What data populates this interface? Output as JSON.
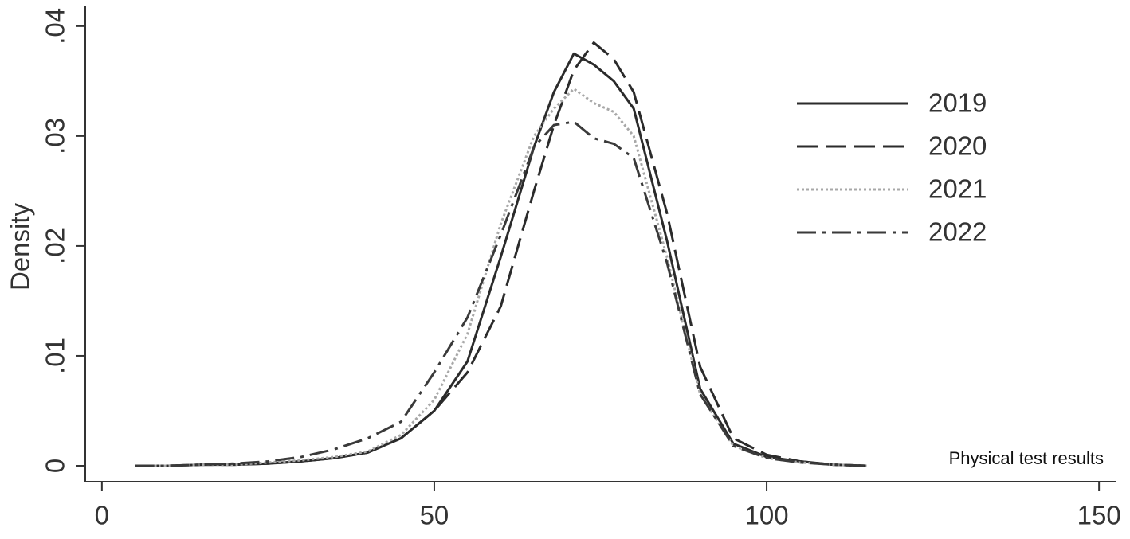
{
  "chart_data": {
    "type": "line",
    "y_label": "Density",
    "annotation": "Physical test results",
    "x": [
      5,
      10,
      15,
      20,
      25,
      30,
      35,
      40,
      45,
      50,
      55,
      60,
      65,
      68,
      71,
      74,
      77,
      80,
      85,
      90,
      95,
      100,
      105,
      110,
      115
    ],
    "series": [
      {
        "name": "2019",
        "color": "#2b2b2b",
        "style": "solid",
        "values": [
          0,
          0,
          0.0001,
          0.0001,
          0.0002,
          0.0004,
          0.0007,
          0.0012,
          0.0025,
          0.005,
          0.0095,
          0.019,
          0.029,
          0.034,
          0.0375,
          0.0365,
          0.035,
          0.0325,
          0.0205,
          0.007,
          0.002,
          0.0008,
          0.0004,
          0.0001,
          0
        ]
      },
      {
        "name": "2020",
        "color": "#2b2b2b",
        "style": "dashed",
        "values": [
          0,
          0,
          0.0001,
          0.0001,
          0.0002,
          0.0004,
          0.0007,
          0.0012,
          0.0025,
          0.005,
          0.0085,
          0.0145,
          0.025,
          0.031,
          0.036,
          0.0385,
          0.037,
          0.034,
          0.023,
          0.009,
          0.0025,
          0.001,
          0.0004,
          0.0001,
          0
        ]
      },
      {
        "name": "2021",
        "color": "#a8a8a8",
        "style": "dotted",
        "values": [
          0,
          0,
          0.0001,
          0.0001,
          0.0003,
          0.0005,
          0.0008,
          0.0013,
          0.0028,
          0.006,
          0.012,
          0.022,
          0.03,
          0.0325,
          0.0343,
          0.033,
          0.0322,
          0.03,
          0.019,
          0.0065,
          0.0018,
          0.0007,
          0.0003,
          0.0001,
          0
        ]
      },
      {
        "name": "2022",
        "color": "#3a3a3a",
        "style": "dashdot",
        "values": [
          0,
          0,
          0.0001,
          0.0002,
          0.0004,
          0.0008,
          0.0015,
          0.0025,
          0.004,
          0.0085,
          0.0135,
          0.021,
          0.029,
          0.031,
          0.0313,
          0.0298,
          0.0293,
          0.028,
          0.0185,
          0.0065,
          0.0018,
          0.0007,
          0.0003,
          0.0001,
          0
        ]
      }
    ],
    "xlim": [
      -2.5,
      152.5
    ],
    "xticks": [
      0,
      50,
      100,
      150
    ],
    "ylim": [
      -0.00145,
      0.0418
    ],
    "yticks": [
      0,
      {
        "value": 0.01,
        "label": ".01"
      },
      {
        "value": 0.02,
        "label": ".02"
      },
      {
        "value": 0.03,
        "label": ".03"
      },
      {
        "value": 0.04,
        "label": ".04"
      }
    ],
    "grid": false,
    "legend": "upper-right"
  }
}
